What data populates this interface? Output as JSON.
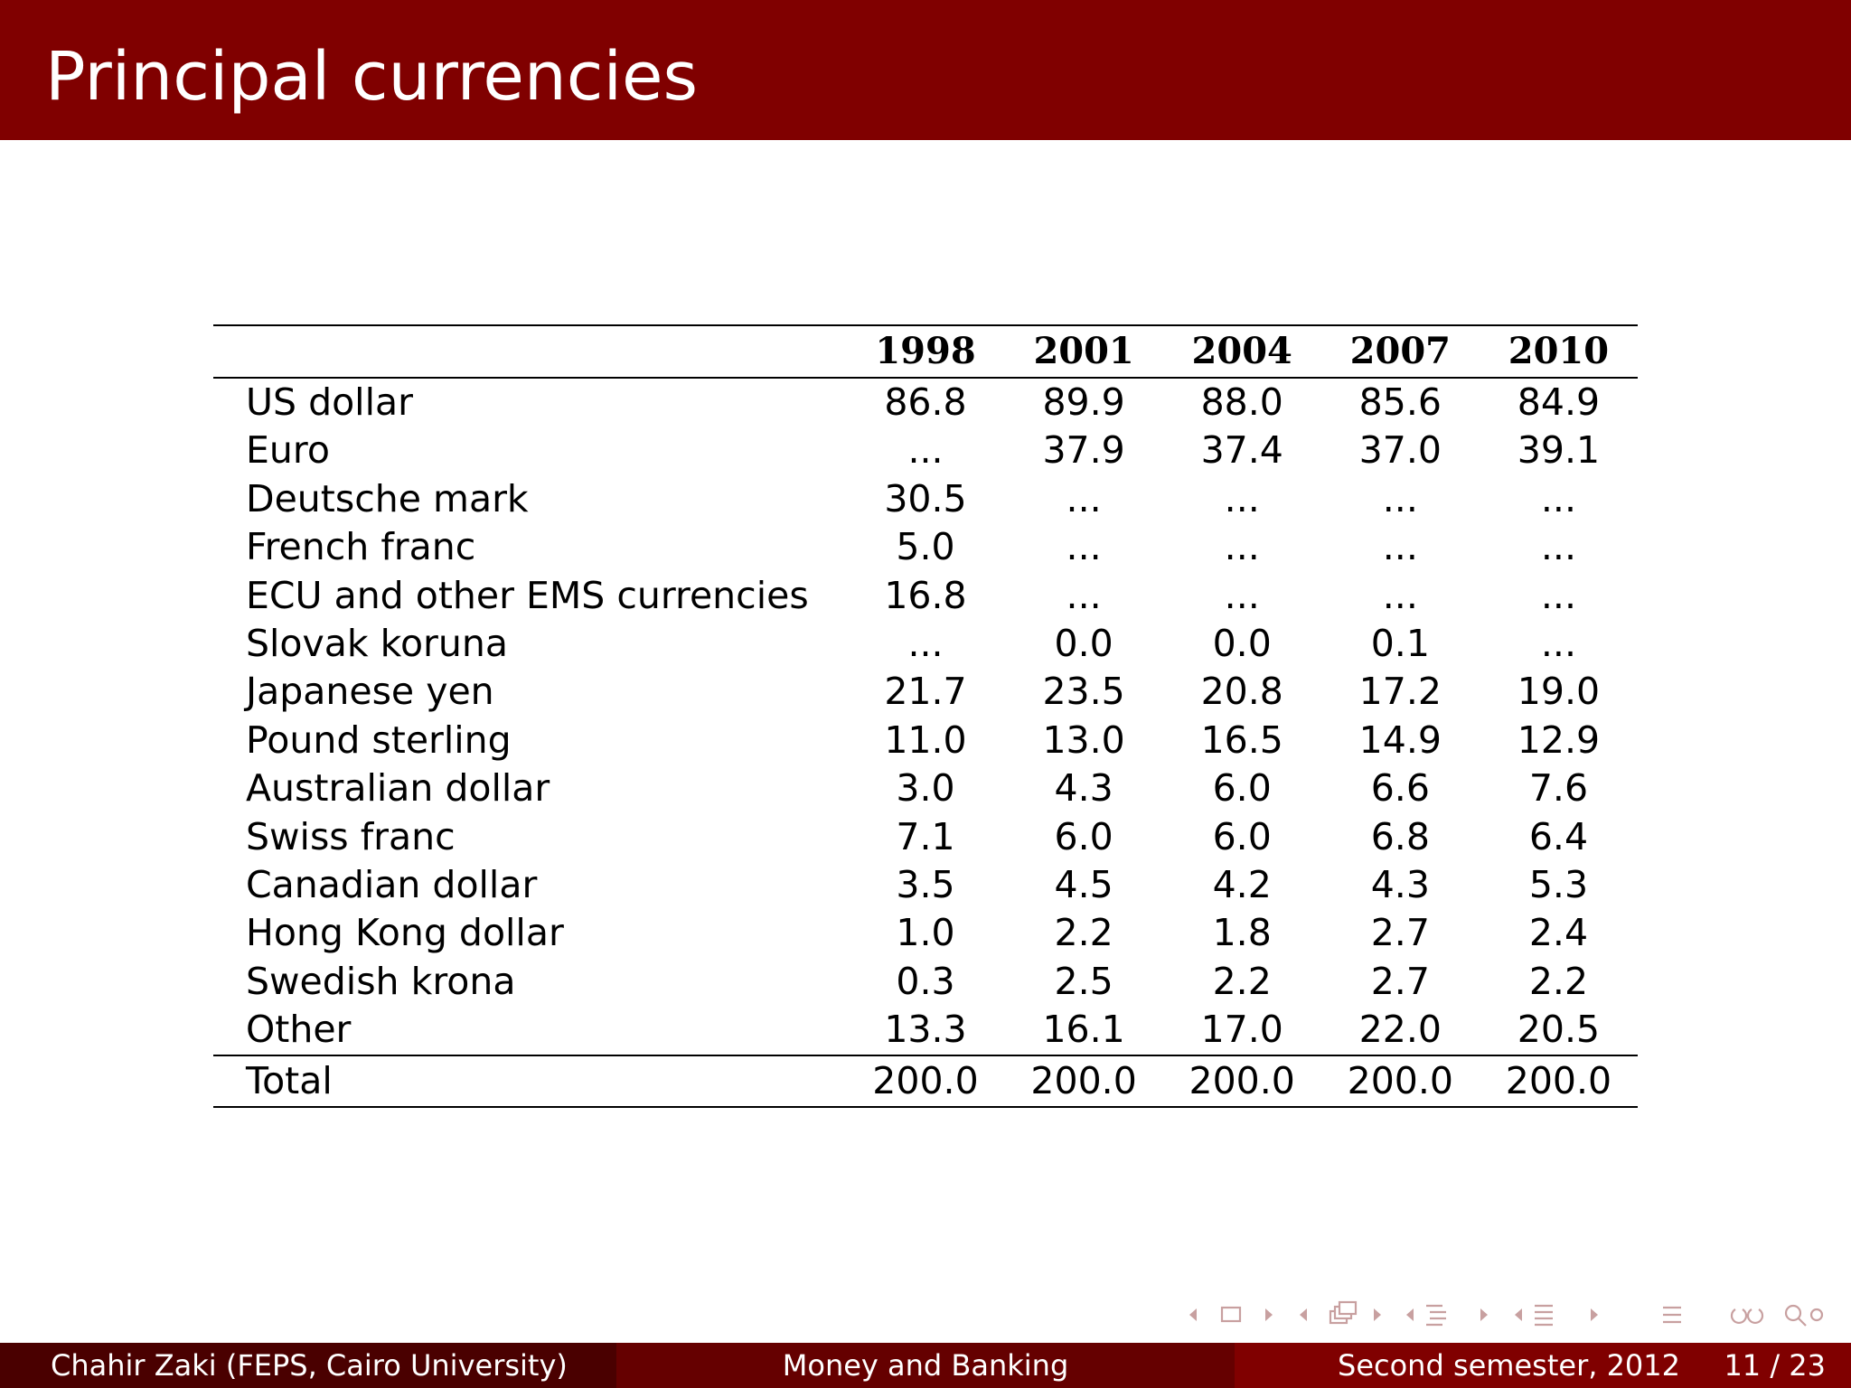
{
  "slide": {
    "title": "Principal currencies"
  },
  "table": {
    "years": [
      "1998",
      "2001",
      "2004",
      "2007",
      "2010"
    ],
    "rows": [
      {
        "label": "US dollar",
        "values": [
          "86.8",
          "89.9",
          "88.0",
          "85.6",
          "84.9"
        ]
      },
      {
        "label": "Euro",
        "values": [
          "...",
          "37.9",
          "37.4",
          "37.0",
          "39.1"
        ]
      },
      {
        "label": "Deutsche mark",
        "values": [
          "30.5",
          "...",
          "...",
          "...",
          "..."
        ]
      },
      {
        "label": "French franc",
        "values": [
          "5.0",
          "...",
          "...",
          "...",
          "..."
        ]
      },
      {
        "label": "ECU and other EMS currencies",
        "values": [
          "16.8",
          "...",
          "...",
          "...",
          "..."
        ]
      },
      {
        "label": "Slovak koruna",
        "values": [
          "...",
          "0.0",
          "0.0",
          "0.1",
          "..."
        ]
      },
      {
        "label": "Japanese yen",
        "values": [
          "21.7",
          "23.5",
          "20.8",
          "17.2",
          "19.0"
        ]
      },
      {
        "label": "Pound sterling",
        "values": [
          "11.0",
          "13.0",
          "16.5",
          "14.9",
          "12.9"
        ]
      },
      {
        "label": "Australian dollar",
        "values": [
          "3.0",
          "4.3",
          "6.0",
          "6.6",
          "7.6"
        ]
      },
      {
        "label": "Swiss franc",
        "values": [
          "7.1",
          "6.0",
          "6.0",
          "6.8",
          "6.4"
        ]
      },
      {
        "label": "Canadian dollar",
        "values": [
          "3.5",
          "4.5",
          "4.2",
          "4.3",
          "5.3"
        ]
      },
      {
        "label": "Hong Kong dollar",
        "values": [
          "1.0",
          "2.2",
          "1.8",
          "2.7",
          "2.4"
        ]
      },
      {
        "label": "Swedish krona",
        "values": [
          "0.3",
          "2.5",
          "2.2",
          "2.7",
          "2.2"
        ]
      },
      {
        "label": "Other",
        "values": [
          "13.3",
          "16.1",
          "17.0",
          "22.0",
          "20.5"
        ]
      }
    ],
    "total": {
      "label": "Total",
      "values": [
        "200.0",
        "200.0",
        "200.0",
        "200.0",
        "200.0"
      ]
    }
  },
  "footer": {
    "author": "Chahir Zaki  (FEPS, Cairo University)",
    "course": "Money and Banking",
    "date": "Second semester, 2012",
    "page": "11 / 23"
  },
  "nav_icons": [
    "nav-prev-slide-icon",
    "nav-frame-icon",
    "nav-next-slide-icon",
    "nav-prev-frame-icon",
    "nav-stack-icon",
    "nav-next-frame-icon",
    "nav-prev-subsection-icon",
    "nav-subsection-icon",
    "nav-next-subsection-icon",
    "nav-prev-section-icon",
    "nav-section-icon",
    "nav-next-section-icon",
    "nav-document-icon",
    "nav-undo-icon",
    "nav-search-icon"
  ],
  "colors": {
    "header": "#800000",
    "footer_left": "#4a0000",
    "footer_mid": "#650000",
    "footer_right": "#800000",
    "nav": "#c8a0a0"
  }
}
